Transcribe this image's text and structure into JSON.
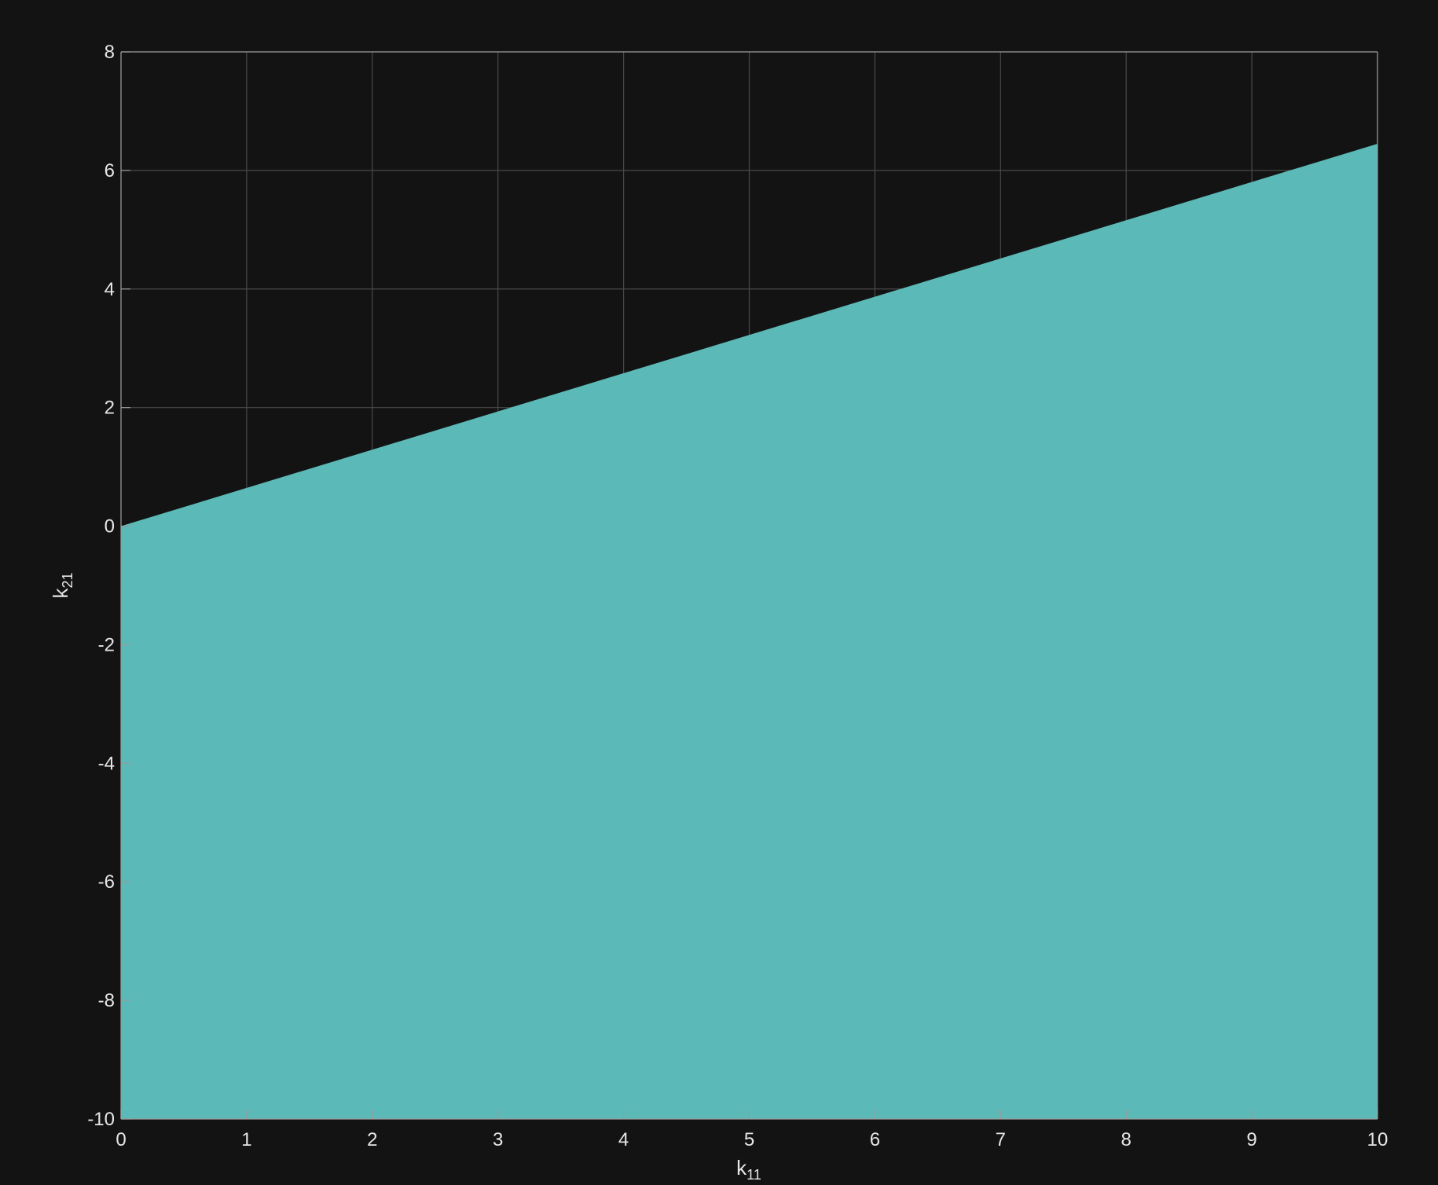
{
  "chart_data": {
    "type": "area",
    "title": "",
    "xlabel": {
      "main": "k",
      "sub": "11"
    },
    "ylabel": {
      "main": "k",
      "sub": "21"
    },
    "xlim": [
      0,
      10
    ],
    "ylim": [
      -10,
      8
    ],
    "xticks": [
      0,
      1,
      2,
      3,
      4,
      5,
      6,
      7,
      8,
      9,
      10
    ],
    "yticks": [
      -10,
      -8,
      -6,
      -4,
      -2,
      0,
      2,
      4,
      6,
      8
    ],
    "grid": true,
    "series": [
      {
        "x": [
          0,
          10
        ],
        "upper": [
          0,
          6.45
        ],
        "lower": [
          -10,
          -10
        ],
        "color": "#5bbab7"
      }
    ],
    "colors": {
      "background": "#131313",
      "grid": "#4a4a4a",
      "axis": "#9a9a9a",
      "text": "#e6e6e6"
    }
  }
}
